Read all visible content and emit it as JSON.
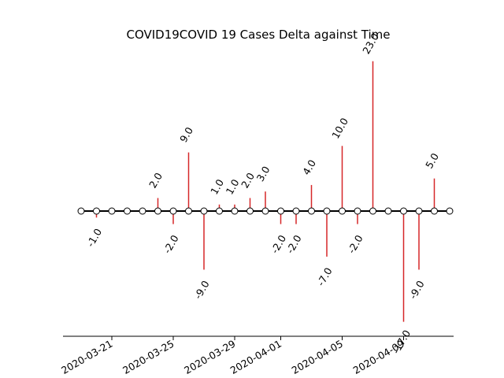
{
  "chart_data": {
    "type": "stem",
    "title": "COVID19COVID 19 Cases Delta against Time",
    "xlabel": "",
    "ylabel": "",
    "x": [
      "2020-03-19",
      "2020-03-20",
      "2020-03-21",
      "2020-03-22",
      "2020-03-23",
      "2020-03-24",
      "2020-03-25",
      "2020-03-26",
      "2020-03-27",
      "2020-03-28",
      "2020-03-29",
      "2020-03-30",
      "2020-03-31",
      "2020-04-01",
      "2020-04-02",
      "2020-04-03",
      "2020-04-04",
      "2020-04-05",
      "2020-04-06",
      "2020-04-07",
      "2020-04-08",
      "2020-04-09",
      "2020-04-10",
      "2020-04-11",
      "2020-04-12"
    ],
    "values": [
      0,
      -1,
      0,
      0,
      0,
      2,
      -2,
      9,
      -9,
      1,
      1,
      2,
      3,
      -2,
      -2,
      4,
      -7,
      10,
      -2,
      23,
      0,
      -17,
      -9,
      5,
      0
    ],
    "labels": [
      "",
      "-1.0",
      "",
      "",
      "",
      "2.0",
      "-2.0",
      "9.0",
      "-9.0",
      "1.0",
      "1.0",
      "2.0",
      "3.0",
      "-2.0",
      "-2.0",
      "4.0",
      "-7.0",
      "10.0",
      "-2.0",
      "23.0",
      "",
      "-17.0",
      "-9.0",
      "5.0",
      ""
    ],
    "xticks": [
      "2020-03-21",
      "2020-03-25",
      "2020-03-29",
      "2020-04-01",
      "2020-04-05",
      "2020-04-09"
    ],
    "xtick_positions": [
      2,
      6,
      10,
      13,
      17,
      21
    ],
    "ylim": [
      -19,
      27
    ],
    "grid": false,
    "legend": false,
    "colors": {
      "stem": "#d62728",
      "baseline": "#000000",
      "marker_fill": "#ffffff",
      "marker_edge": "#000000"
    }
  }
}
